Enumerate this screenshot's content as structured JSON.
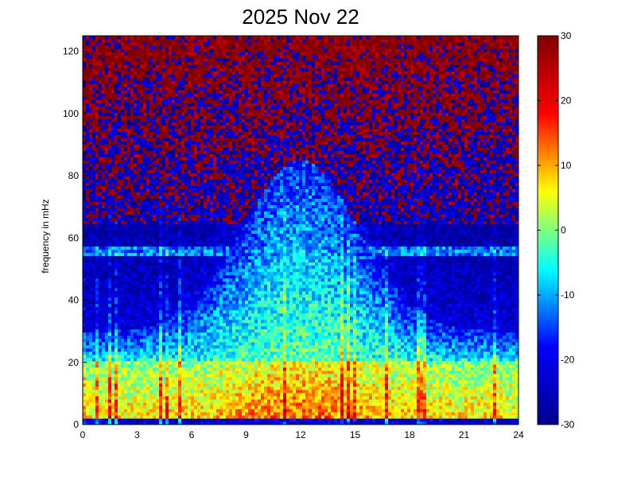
{
  "chart_data": {
    "type": "heatmap",
    "title": "2025 Nov 22",
    "xlabel": "",
    "ylabel": "frequency in mHz",
    "xlim": [
      0,
      24
    ],
    "ylim": [
      0,
      125
    ],
    "xticks": [
      0,
      3,
      6,
      9,
      12,
      15,
      18,
      21,
      24
    ],
    "xtick_labels": [
      "0",
      "3",
      "6",
      "9",
      "12",
      "15",
      "18",
      "21",
      "24"
    ],
    "yticks": [
      0,
      20,
      40,
      60,
      80,
      100,
      120
    ],
    "ytick_labels": [
      "0",
      "20",
      "40",
      "60",
      "80",
      "100",
      "120"
    ],
    "colorbar": {
      "range": [
        -30,
        30
      ],
      "ticks": [
        -30,
        -20,
        -10,
        0,
        10,
        20,
        30
      ],
      "tick_labels": [
        "-30",
        "-20",
        "-10",
        "0",
        "10",
        "20",
        "30"
      ],
      "colormap": "jet"
    },
    "colormap_stops": [
      "#00008f",
      "#0000ff",
      "#00ffff",
      "#ffff00",
      "#ff0000",
      "#800000"
    ],
    "grid": false,
    "features": {
      "low_freq_band_mHz": [
        0,
        20
      ],
      "low_freq_level_dB": 8,
      "daytime_peak_hour": 12,
      "daytime_peak_top_mHz": 85,
      "persistent_line_mHz": 56,
      "high_freq_floor_level_dB": 30
    }
  }
}
